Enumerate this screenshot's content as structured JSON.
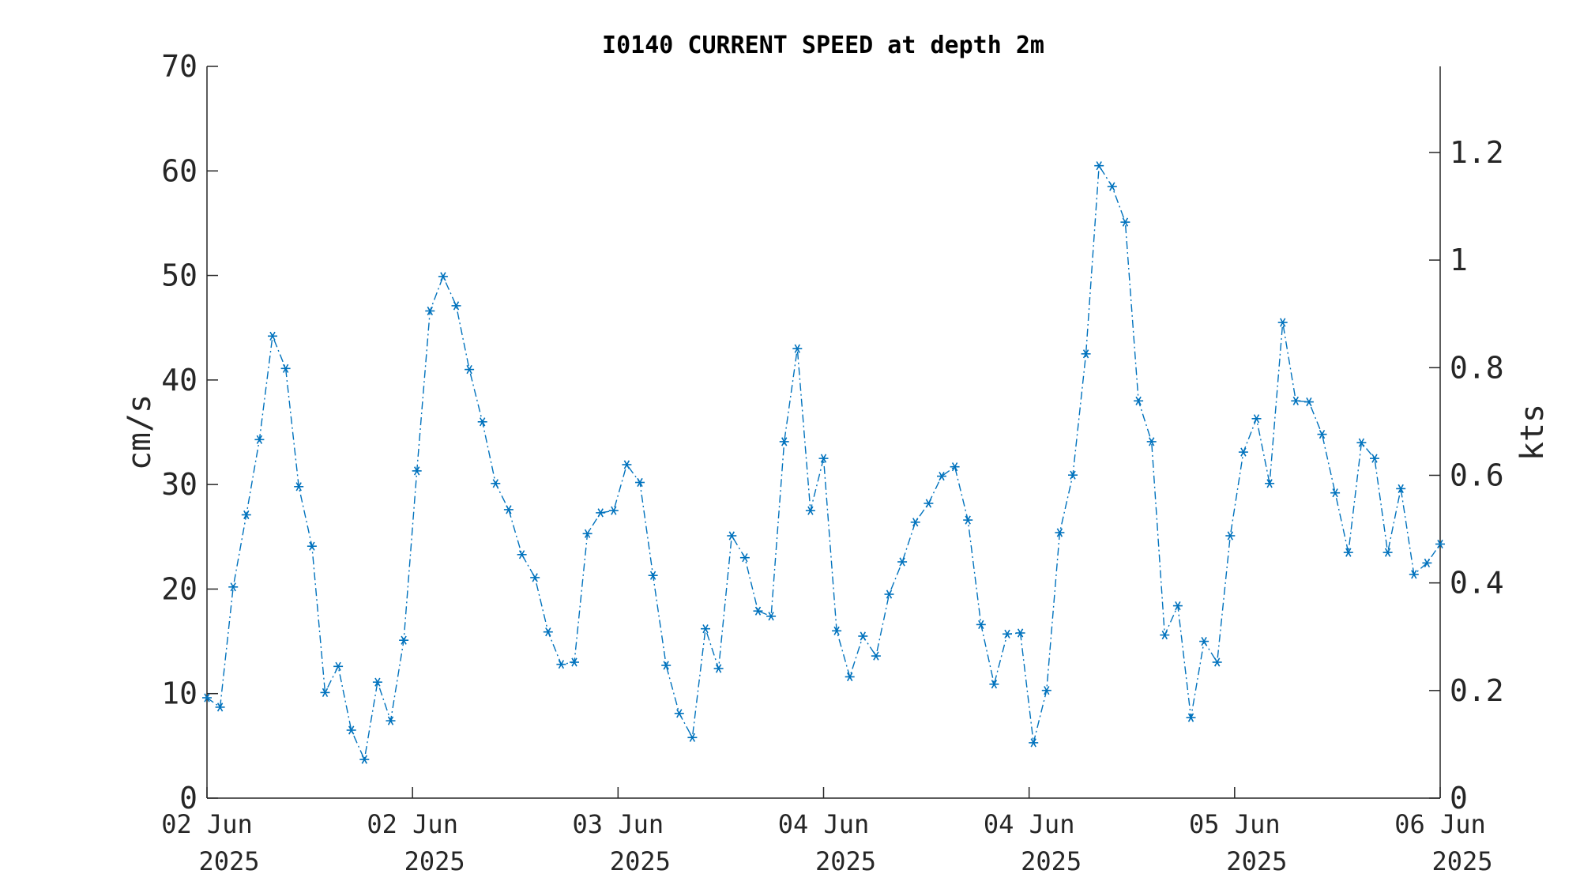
{
  "chart_data": {
    "type": "line",
    "title": "I0140 CURRENT SPEED at depth 2m",
    "ylabel": "cm/s",
    "y2label": "kts",
    "ylim": [
      0,
      70
    ],
    "y2lim": [
      0,
      1.36
    ],
    "yticks": [
      "0",
      "10",
      "20",
      "30",
      "40",
      "50",
      "60",
      "70"
    ],
    "y2ticks": [
      "0",
      "0.2",
      "0.4",
      "0.6",
      "0.8",
      "1",
      "1.2"
    ],
    "xticks": [
      {
        "line1": "02 Jun",
        "line2": "2025"
      },
      {
        "line1": "02 Jun",
        "line2": "2025"
      },
      {
        "line1": "03 Jun",
        "line2": "2025"
      },
      {
        "line1": "04 Jun",
        "line2": "2025"
      },
      {
        "line1": "04 Jun",
        "line2": "2025"
      },
      {
        "line1": "05 Jun",
        "line2": "2025"
      },
      {
        "line1": "06 Jun",
        "line2": "2025"
      }
    ],
    "line_style": "dash-dot with asterisk markers",
    "grid": false,
    "series": [
      {
        "color": "#0072BD",
        "values": [
          9.6,
          8.7,
          20.2,
          27.1,
          34.3,
          44.2,
          41.1,
          29.8,
          24.1,
          10.1,
          12.6,
          6.5,
          3.7,
          11.1,
          7.4,
          15.1,
          31.3,
          46.6,
          49.9,
          47.1,
          41.0,
          36.0,
          30.1,
          27.6,
          23.3,
          21.1,
          15.9,
          12.8,
          13.0,
          25.3,
          27.3,
          27.5,
          31.9,
          30.2,
          21.3,
          12.7,
          8.1,
          5.8,
          16.2,
          12.4,
          25.1,
          23.0,
          17.9,
          17.4,
          34.1,
          43.0,
          27.5,
          32.5,
          16.0,
          11.6,
          15.5,
          13.6,
          19.5,
          22.6,
          26.4,
          28.2,
          30.8,
          31.7,
          26.6,
          16.6,
          10.9,
          15.7,
          15.8,
          5.3,
          10.3,
          25.4,
          30.9,
          42.5,
          60.5,
          58.5,
          55.1,
          38.0,
          34.1,
          15.6,
          18.4,
          7.7,
          15.0,
          13.0,
          25.1,
          33.1,
          36.3,
          30.1,
          45.5,
          38.0,
          37.9,
          34.8,
          29.2,
          23.5,
          34.0,
          32.5,
          23.5,
          29.6,
          21.4,
          22.5,
          24.3
        ]
      }
    ]
  }
}
